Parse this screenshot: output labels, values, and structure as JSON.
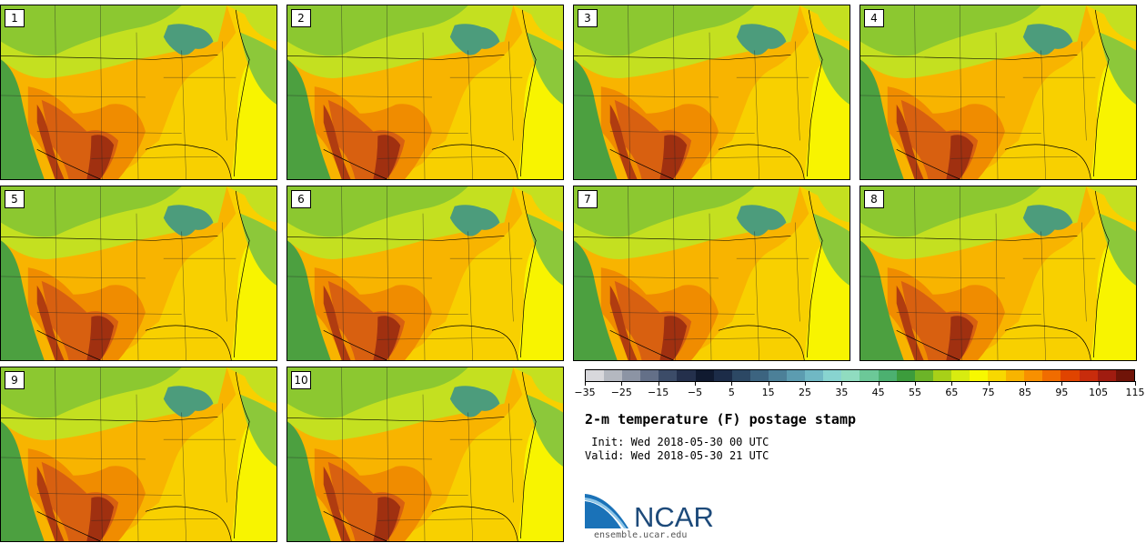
{
  "panels": [
    {
      "label": "1"
    },
    {
      "label": "2"
    },
    {
      "label": "3"
    },
    {
      "label": "4"
    },
    {
      "label": "5"
    },
    {
      "label": "6"
    },
    {
      "label": "7"
    },
    {
      "label": "8"
    },
    {
      "label": "9"
    },
    {
      "label": "10"
    }
  ],
  "colorbar": {
    "colors": [
      "#d8d8dc",
      "#b4b8c0",
      "#8c94a4",
      "#647088",
      "#3c4c68",
      "#24304c",
      "#101a30",
      "#1c2c48",
      "#2c4864",
      "#3c6480",
      "#4c8098",
      "#5c9cb0",
      "#70b8c4",
      "#88d4d0",
      "#90dcc0",
      "#6cc898",
      "#4cb070",
      "#3c9c3c",
      "#6cb428",
      "#a8d018",
      "#d8ec10",
      "#f8f800",
      "#f8d800",
      "#f8b400",
      "#f89000",
      "#f06c00",
      "#e04400",
      "#c82c0c",
      "#a01c10",
      "#701408"
    ],
    "tick_labels": [
      "−35",
      "−25",
      "−15",
      "−5",
      "5",
      "15",
      "25",
      "35",
      "45",
      "55",
      "65",
      "75",
      "85",
      "95",
      "105",
      "115"
    ]
  },
  "title": "2-m temperature (F) postage stamp",
  "init_text": " Init: Wed 2018-05-30 00 UTC",
  "valid_text": "Valid: Wed 2018-05-30 21 UTC",
  "logo": {
    "text": "NCAR",
    "url": "ensemble.ucar.edu"
  }
}
